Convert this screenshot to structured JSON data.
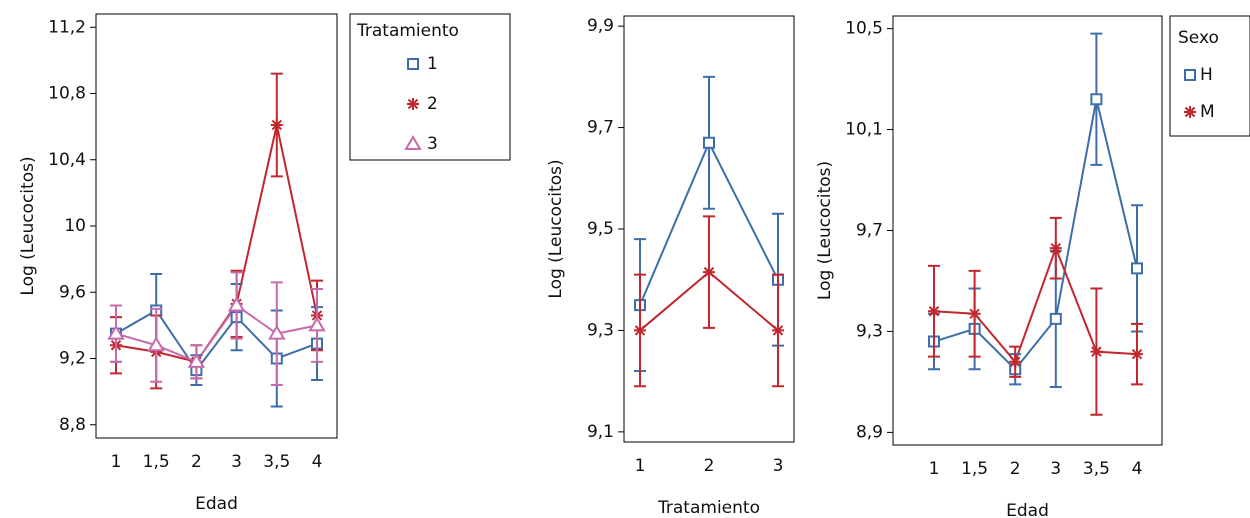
{
  "chart_data": [
    {
      "type": "line",
      "categories": [
        "1",
        "1,5",
        "2",
        "3",
        "3,5",
        "4"
      ],
      "xlabel": "Edad",
      "ylabel": "Log (Leucocitos)",
      "ylim": [
        8.72,
        11.28
      ],
      "yticks": [
        {
          "value": 8.8,
          "label": "8,8"
        },
        {
          "value": 9.2,
          "label": "9,2"
        },
        {
          "value": 9.6,
          "label": "9,6"
        },
        10,
        {
          "value": 10.4,
          "label": "10,4"
        },
        {
          "value": 10.8,
          "label": "10,8"
        },
        {
          "value": 11.2,
          "label": "11,2"
        }
      ],
      "legend_title": "Tratamiento",
      "series": [
        {
          "name": "1",
          "color": "#3d6ea8",
          "marker": "square",
          "values": [
            9.35,
            9.49,
            9.13,
            9.45,
            9.2,
            9.29
          ],
          "errors": [
            0.17,
            0.22,
            0.09,
            0.2,
            0.29,
            0.22
          ]
        },
        {
          "name": "2",
          "color": "#c1272d",
          "marker": "star",
          "values": [
            9.28,
            9.24,
            9.18,
            9.53,
            10.61,
            9.46
          ],
          "errors": [
            0.17,
            0.22,
            0.1,
            0.2,
            0.31,
            0.21
          ]
        },
        {
          "name": "3",
          "color": "#c66bae",
          "marker": "triangle",
          "values": [
            9.35,
            9.28,
            9.18,
            9.52,
            9.35,
            9.4
          ],
          "errors": [
            0.17,
            0.22,
            0.1,
            0.2,
            0.31,
            0.22
          ]
        }
      ]
    },
    {
      "type": "line",
      "categories": [
        "1",
        "2",
        "3"
      ],
      "xlabel": "Tratamiento",
      "ylabel": "Log (Leucocitos)",
      "ylim": [
        9.08,
        9.92
      ],
      "yticks": [
        {
          "value": 9.1,
          "label": "9,1"
        },
        {
          "value": 9.3,
          "label": "9,3"
        },
        {
          "value": 9.5,
          "label": "9,5"
        },
        {
          "value": 9.7,
          "label": "9,7"
        },
        {
          "value": 9.9,
          "label": "9,9"
        }
      ],
      "series": [
        {
          "color": "#3d6ea8",
          "marker": "square",
          "values": [
            9.35,
            9.67,
            9.4
          ],
          "errors": [
            0.13,
            0.13,
            0.13
          ]
        },
        {
          "color": "#c1272d",
          "marker": "star",
          "values": [
            9.3,
            9.415,
            9.3
          ],
          "errors": [
            0.11,
            0.11,
            0.11
          ]
        }
      ]
    },
    {
      "type": "line",
      "categories": [
        "1",
        "1,5",
        "2",
        "3",
        "3,5",
        "4"
      ],
      "xlabel": "Edad",
      "ylabel": "Log (Leucocitos)",
      "ylim": [
        8.85,
        10.55
      ],
      "yticks": [
        {
          "value": 8.9,
          "label": "8,9"
        },
        {
          "value": 9.3,
          "label": "9,3"
        },
        {
          "value": 9.7,
          "label": "9,7"
        },
        {
          "value": 10.1,
          "label": "10,1"
        },
        {
          "value": 10.5,
          "label": "10,5"
        }
      ],
      "legend_title": "Sexo",
      "series": [
        {
          "name": "H",
          "color": "#3d6ea8",
          "marker": "square",
          "values": [
            9.26,
            9.31,
            9.15,
            9.35,
            10.22,
            9.55
          ],
          "errors": [
            0.11,
            0.16,
            0.06,
            0.27,
            0.26,
            0.25
          ]
        },
        {
          "name": "M",
          "color": "#c1272d",
          "marker": "star",
          "values": [
            9.38,
            9.37,
            9.18,
            9.63,
            9.22,
            9.21
          ],
          "errors": [
            0.18,
            0.17,
            0.06,
            0.12,
            0.25,
            0.12
          ]
        }
      ]
    }
  ]
}
